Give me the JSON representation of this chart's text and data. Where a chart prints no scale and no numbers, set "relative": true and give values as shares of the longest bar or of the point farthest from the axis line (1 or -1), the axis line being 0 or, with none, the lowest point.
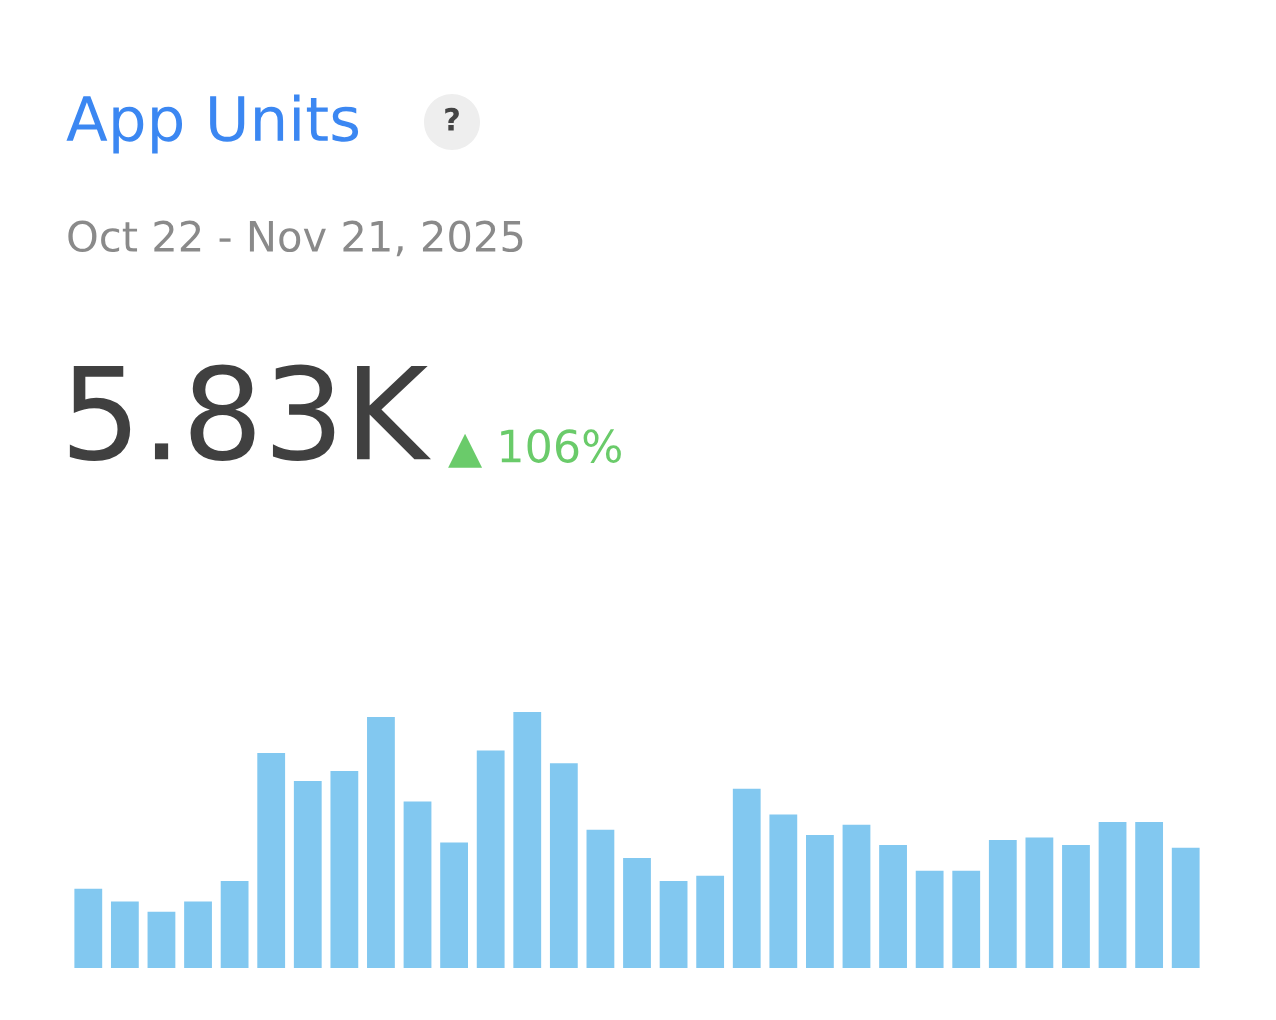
{
  "chart_data": {
    "type": "bar",
    "title": "App Units",
    "subtitle": "Oct 22 - Nov 21, 2025",
    "annotations": [
      "?",
      "5.83K",
      "▲ 106%"
    ],
    "relative": true,
    "categories": [
      null,
      null,
      null,
      null,
      null,
      null,
      null,
      null,
      null,
      null,
      null,
      null,
      null,
      null,
      null,
      null,
      null,
      null,
      null,
      null,
      null,
      null,
      null,
      null,
      null,
      null,
      null,
      null,
      null,
      null,
      null
    ],
    "color": "#82c8f0",
    "values": [
      0.31,
      0.26,
      0.22,
      0.26,
      0.34,
      0.84,
      0.73,
      0.77,
      0.98,
      0.65,
      0.49,
      0.85,
      1,
      0.8,
      0.54,
      0.43,
      0.34,
      0.36,
      0.7,
      0.6,
      0.52,
      0.56,
      0.48,
      0.38,
      0.38,
      0.5,
      0.51,
      0.48,
      0.57,
      0.57,
      0.47
    ],
    "grid": false,
    "legend": false
  }
}
